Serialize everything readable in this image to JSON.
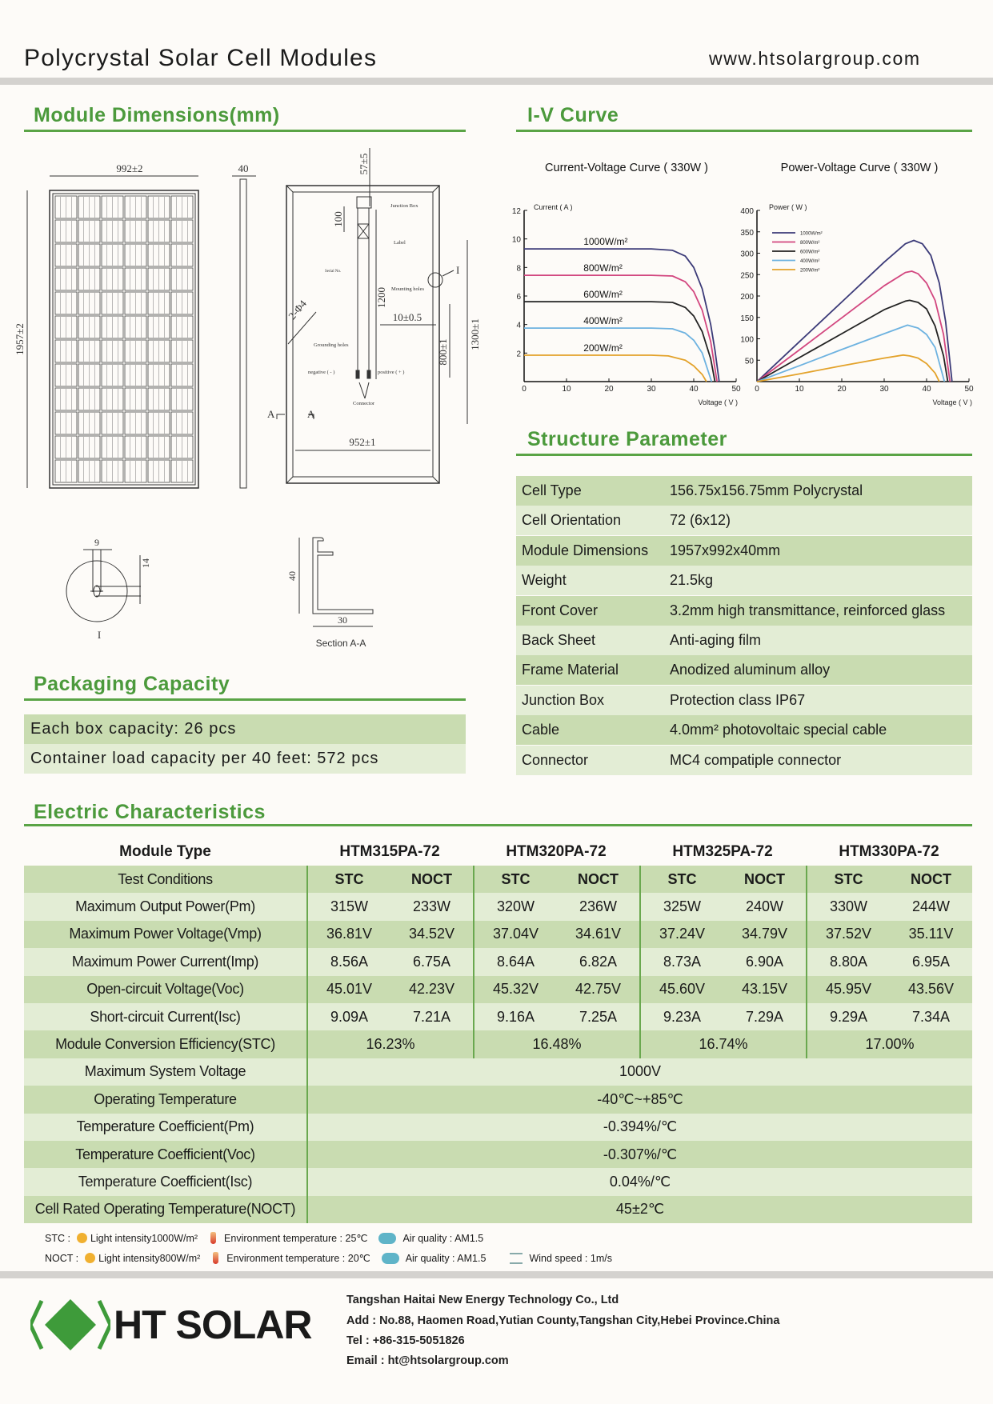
{
  "header": {
    "title": "Polycrystal Solar Cell Modules",
    "website": "www.htsolargroup.com"
  },
  "sections": {
    "dimensions": "Module Dimensions(mm)",
    "iv_curve": "I-V Curve",
    "structure": "Structure Parameter",
    "packaging": "Packaging Capacity",
    "electric": "Electric Characteristics"
  },
  "drawing": {
    "width": "992±2",
    "length": "1957±2",
    "thickness": "40",
    "jb_offset": "57±5",
    "d100": "100",
    "d1200": "1200",
    "hole_offset": "10±0.5",
    "d800": "800±1",
    "d1300": "1300±1",
    "d952": "952±1",
    "grounding": "2-Φ4",
    "junction_box": "Junction Box",
    "label": "Label",
    "serial": "Serial No.",
    "mounting": "Mounting holes",
    "grounding_holes": "Grounding holes",
    "negative": "negative ( - )",
    "positive": "positive ( + )",
    "connector": "Connector",
    "detail_mark": "I",
    "section_mark": "A",
    "detail_w": "9",
    "detail_h": "14",
    "detail_label": "I",
    "section_h": "40",
    "section_w": "30",
    "section_label": "Section A-A"
  },
  "chart_data": [
    {
      "type": "line",
      "title": "Current-Voltage Curve  ( 330W )",
      "xlabel": "Voltage  ( V )",
      "ylabel": "Current  ( A )",
      "xlim": [
        0,
        50
      ],
      "ylim": [
        0,
        12
      ],
      "xticks": [
        0,
        10,
        20,
        30,
        40,
        50
      ],
      "yticks": [
        2,
        4,
        6,
        8,
        10,
        12
      ],
      "grid": false,
      "series": [
        {
          "name": "1000W/m²",
          "color": "#3b3a78",
          "points": [
            [
              0,
              9.3
            ],
            [
              30,
              9.3
            ],
            [
              35,
              9.2
            ],
            [
              38,
              8.8
            ],
            [
              40,
              8.0
            ],
            [
              42,
              6.5
            ],
            [
              44,
              4.0
            ],
            [
              45,
              2.2
            ],
            [
              46,
              0
            ]
          ]
        },
        {
          "name": "800W/m²",
          "color": "#d2467f",
          "points": [
            [
              0,
              7.45
            ],
            [
              30,
              7.45
            ],
            [
              35,
              7.4
            ],
            [
              38,
              7.0
            ],
            [
              40,
              6.3
            ],
            [
              42,
              5.0
            ],
            [
              44,
              2.8
            ],
            [
              45.5,
              0
            ]
          ]
        },
        {
          "name": "600W/m²",
          "color": "#222222",
          "points": [
            [
              0,
              5.6
            ],
            [
              30,
              5.6
            ],
            [
              35,
              5.55
            ],
            [
              38,
              5.2
            ],
            [
              40,
              4.6
            ],
            [
              42,
              3.5
            ],
            [
              44,
              1.6
            ],
            [
              45,
              0
            ]
          ]
        },
        {
          "name": "400W/m²",
          "color": "#6db2e0",
          "points": [
            [
              0,
              3.75
            ],
            [
              30,
              3.75
            ],
            [
              35,
              3.7
            ],
            [
              38,
              3.4
            ],
            [
              40,
              2.9
            ],
            [
              42,
              2.0
            ],
            [
              44.2,
              0
            ]
          ]
        },
        {
          "name": "200W/m²",
          "color": "#e3a22a",
          "points": [
            [
              0,
              1.85
            ],
            [
              30,
              1.85
            ],
            [
              34,
              1.8
            ],
            [
              38,
              1.5
            ],
            [
              40,
              1.1
            ],
            [
              42,
              0.5
            ],
            [
              43,
              0
            ]
          ]
        }
      ]
    },
    {
      "type": "line",
      "title": "Power-Voltage Curve  ( 330W )",
      "xlabel": "Voltage  ( V )",
      "ylabel": "Power  ( W )",
      "xlim": [
        0,
        50
      ],
      "ylim": [
        0,
        400
      ],
      "xticks": [
        0,
        10,
        20,
        30,
        40,
        50
      ],
      "yticks": [
        50,
        100,
        150,
        200,
        250,
        300,
        350,
        400
      ],
      "grid": false,
      "legend": "top-left",
      "series": [
        {
          "name": "1000W/m²",
          "color": "#3b3a78",
          "points": [
            [
              0,
              0
            ],
            [
              10,
              93
            ],
            [
              20,
              186
            ],
            [
              30,
              279
            ],
            [
              35,
              322
            ],
            [
              37,
              330
            ],
            [
              39,
              322
            ],
            [
              41,
              295
            ],
            [
              43,
              230
            ],
            [
              44.5,
              140
            ],
            [
              46,
              0
            ]
          ]
        },
        {
          "name": "800W/m²",
          "color": "#d2467f",
          "points": [
            [
              0,
              0
            ],
            [
              10,
              74
            ],
            [
              20,
              149
            ],
            [
              30,
              224
            ],
            [
              35,
              255
            ],
            [
              36.5,
              258
            ],
            [
              38,
              252
            ],
            [
              40,
              230
            ],
            [
              42,
              190
            ],
            [
              44,
              110
            ],
            [
              45.5,
              0
            ]
          ]
        },
        {
          "name": "600W/m²",
          "color": "#222222",
          "points": [
            [
              0,
              0
            ],
            [
              10,
              56
            ],
            [
              20,
              112
            ],
            [
              30,
              168
            ],
            [
              35,
              188
            ],
            [
              36,
              190
            ],
            [
              38,
              185
            ],
            [
              40,
              170
            ],
            [
              42,
              130
            ],
            [
              44,
              60
            ],
            [
              45,
              0
            ]
          ]
        },
        {
          "name": "400W/m²",
          "color": "#6db2e0",
          "points": [
            [
              0,
              0
            ],
            [
              10,
              37
            ],
            [
              20,
              75
            ],
            [
              30,
              112
            ],
            [
              35,
              130
            ],
            [
              35.5,
              132
            ],
            [
              38,
              125
            ],
            [
              40,
              110
            ],
            [
              42,
              80
            ],
            [
              44.2,
              0
            ]
          ]
        },
        {
          "name": "200W/m²",
          "color": "#e3a22a",
          "points": [
            [
              0,
              0
            ],
            [
              10,
              18
            ],
            [
              20,
              37
            ],
            [
              30,
              55
            ],
            [
              34.5,
              62
            ],
            [
              36,
              60
            ],
            [
              38,
              55
            ],
            [
              40,
              42
            ],
            [
              42,
              20
            ],
            [
              43,
              0
            ]
          ]
        }
      ]
    }
  ],
  "structure": [
    {
      "label": "Cell Type",
      "value": "156.75x156.75mm Polycrystal"
    },
    {
      "label": "Cell Orientation",
      "value": "72 (6x12)"
    },
    {
      "label": "Module Dimensions",
      "value": "1957x992x40mm"
    },
    {
      "label": "Weight",
      "value": "21.5kg"
    },
    {
      "label": "Front Cover",
      "value": "3.2mm high transmittance, reinforced glass"
    },
    {
      "label": "Back Sheet",
      "value": "Anti-aging film"
    },
    {
      "label": "Frame Material",
      "value": "Anodized aluminum alloy"
    },
    {
      "label": "Junction Box",
      "value": "Protection class IP67"
    },
    {
      "label": "Cable",
      "value": "4.0mm² photovoltaic special cable"
    },
    {
      "label": "Connector",
      "value": "MC4 compatiple connector"
    }
  ],
  "packaging": [
    "Each box capacity: 26 pcs",
    "Container load capacity per 40 feet: 572 pcs"
  ],
  "electric": {
    "module_type_label": "Module Type",
    "models": [
      "HTM315PA-72",
      "HTM320PA-72",
      "HTM325PA-72",
      "HTM330PA-72"
    ],
    "test_conditions_label": "Test Conditions",
    "conditions": [
      "STC",
      "NOCT"
    ],
    "rows": [
      {
        "label": "Maximum Output Power(Pm)",
        "values": [
          [
            "315W",
            "233W"
          ],
          [
            "320W",
            "236W"
          ],
          [
            "325W",
            "240W"
          ],
          [
            "330W",
            "244W"
          ]
        ]
      },
      {
        "label": "Maximum Power Voltage(Vmp)",
        "values": [
          [
            "36.81V",
            "34.52V"
          ],
          [
            "37.04V",
            "34.61V"
          ],
          [
            "37.24V",
            "34.79V"
          ],
          [
            "37.52V",
            "35.11V"
          ]
        ]
      },
      {
        "label": "Maximum Power Current(Imp)",
        "values": [
          [
            "8.56A",
            "6.75A"
          ],
          [
            "8.64A",
            "6.82A"
          ],
          [
            "8.73A",
            "6.90A"
          ],
          [
            "8.80A",
            "6.95A"
          ]
        ]
      },
      {
        "label": "Open-circuit Voltage(Voc)",
        "values": [
          [
            "45.01V",
            "42.23V"
          ],
          [
            "45.32V",
            "42.75V"
          ],
          [
            "45.60V",
            "43.15V"
          ],
          [
            "45.95V",
            "43.56V"
          ]
        ]
      },
      {
        "label": "Short-circuit Current(Isc)",
        "values": [
          [
            "9.09A",
            "7.21A"
          ],
          [
            "9.16A",
            "7.25A"
          ],
          [
            "9.23A",
            "7.29A"
          ],
          [
            "9.29A",
            "7.34A"
          ]
        ]
      },
      {
        "label": "Module Conversion Efficiency(STC)",
        "per_model": [
          "16.23%",
          "16.48%",
          "16.74%",
          "17.00%"
        ]
      },
      {
        "label": "Maximum System Voltage",
        "common": "1000V"
      },
      {
        "label": "Operating Temperature",
        "common": "-40℃~+85℃"
      },
      {
        "label": "Temperature Coefficient(Pm)",
        "common": "-0.394%/℃"
      },
      {
        "label": "Temperature Coefficient(Voc)",
        "common": "-0.307%/℃"
      },
      {
        "label": "Temperature Coefficient(Isc)",
        "common": "0.04%/℃"
      },
      {
        "label": "Cell Rated Operating Temperature(NOCT)",
        "common": "45±2℃"
      }
    ]
  },
  "notes": {
    "stc": {
      "prefix": "STC :",
      "light": "Light intensity1000W/m²",
      "temp": "Environment temperature : 25℃",
      "air": "Air quality : AM1.5"
    },
    "noct": {
      "prefix": "NOCT :",
      "light": "Light intensity800W/m²",
      "temp": "Environment temperature : 20℃",
      "air": "Air quality : AM1.5",
      "wind": "Wind speed : 1m/s"
    }
  },
  "footer": {
    "logo_text": "HT SOLAR",
    "logo_color": "#3e9b3a",
    "company": "Tangshan Haitai New Energy Technology Co., Ltd",
    "address": "Add : No.88, Haomen Road,Yutian County,Tangshan City,Hebei Province.China",
    "tel": "Tel : +86-315-5051826",
    "email": "Email : ht@htsolargroup.com"
  }
}
